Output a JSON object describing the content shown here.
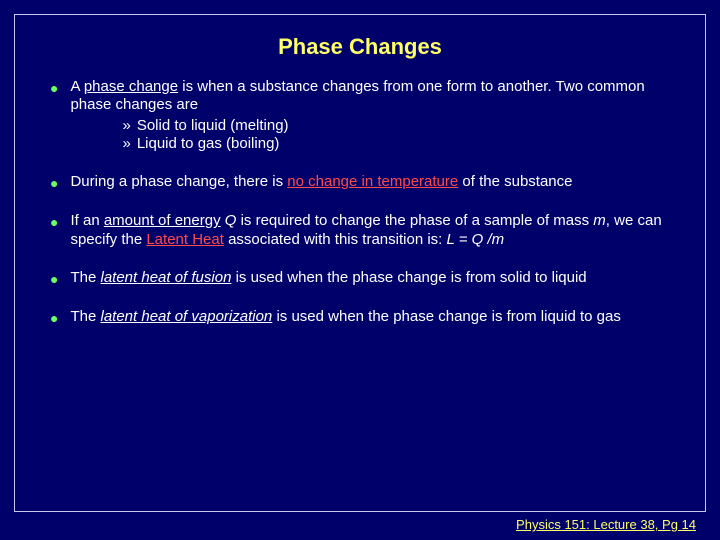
{
  "colors": {
    "background": "#00006a",
    "title": "#ffff66",
    "body_text": "#ffffff",
    "bullet": "#66ff66",
    "emphasis_red": "#ff4a4a",
    "footer": "#ffff66",
    "border": "#c8c8ee",
    "outer_bg": "#000000"
  },
  "typography": {
    "title_fontsize": 22,
    "body_fontsize": 15,
    "footer_fontsize": 13,
    "font_family": "Arial"
  },
  "title": "Phase Changes",
  "bullets": {
    "b1": {
      "pre": "A ",
      "u1": "phase change",
      "post": " is when a substance changes from one form to another. Two common phase changes are",
      "sub1": "Solid to liquid (melting)",
      "sub2": "Liquid to gas (boiling)"
    },
    "b2": {
      "pre": "During a phase change, there is ",
      "red": "no change in temperature",
      "post": " of the substance"
    },
    "b3": {
      "t1": "If an ",
      "u1": "amount of energy",
      "t2": " ",
      "i1": "Q",
      "t3": " is required to change the phase of a sample of mass ",
      "i2": "m",
      "t4": ", we can specify the ",
      "red": "Latent Heat",
      "t5": " associated with this transition is:   ",
      "eq": "L = Q /m"
    },
    "b4": {
      "t1": "The ",
      "iu1": "latent heat of fusion",
      "t2": " is used when the phase change is from solid to liquid"
    },
    "b5": {
      "t1": "The ",
      "iu1": "latent heat of vaporization",
      "t2": " is used when the phase change is from liquid to gas"
    }
  },
  "sub_marker": "»",
  "footer": "Physics 151: Lecture 38, Pg 14"
}
